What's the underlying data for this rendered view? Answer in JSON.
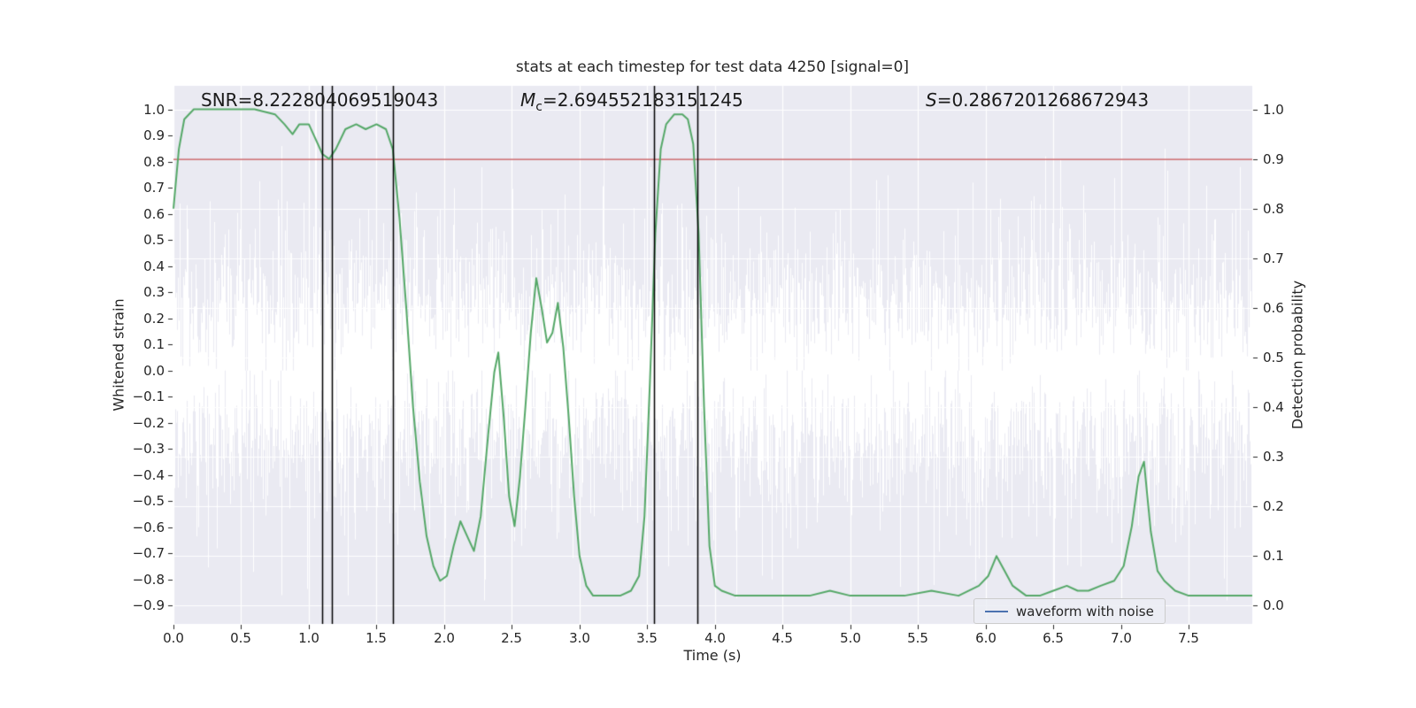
{
  "chart_data": {
    "type": "line",
    "title": "stats at each timestep for test data 4250 [signal=0]",
    "xlabel": "Time (s)",
    "ylabel_left": "Whitened strain",
    "ylabel_right": "Detection probability",
    "xlim": [
      0.0,
      7.97
    ],
    "ylim_left": [
      -0.97,
      1.09
    ],
    "right_axis": {
      "left_at_0": -0.9,
      "left_at_1": 1.0
    },
    "grid": true,
    "colors": {
      "axes_bg": "#eaeaf2",
      "grid": "#ffffff",
      "noise_blue": "#4c72b0",
      "detection_green": "#55a868",
      "threshold_red": "#c44e52",
      "vline_black": "#000000",
      "text": "#262626"
    },
    "xticks": {
      "values": [
        0.0,
        0.5,
        1.0,
        1.5,
        2.0,
        2.5,
        3.0,
        3.5,
        4.0,
        4.5,
        5.0,
        5.5,
        6.0,
        6.5,
        7.0,
        7.5
      ],
      "labels": [
        "0.0",
        "0.5",
        "1.0",
        "1.5",
        "2.0",
        "2.5",
        "3.0",
        "3.5",
        "4.0",
        "4.5",
        "5.0",
        "5.5",
        "6.0",
        "6.5",
        "7.0",
        "7.5"
      ]
    },
    "yticks_left": {
      "values": [
        1.0,
        0.9,
        0.8,
        0.7,
        0.6,
        0.5,
        0.4,
        0.3,
        0.2,
        0.1,
        0.0,
        -0.1,
        -0.2,
        -0.3,
        -0.4,
        -0.5,
        -0.6,
        -0.7,
        -0.8,
        -0.9
      ],
      "labels": [
        "1.0",
        "0.9",
        "0.8",
        "0.7",
        "0.6",
        "0.5",
        "0.4",
        "0.3",
        "0.2",
        "0.1",
        "0.0",
        "−0.1",
        "−0.2",
        "−0.3",
        "−0.4",
        "−0.5",
        "−0.6",
        "−0.7",
        "−0.8",
        "−0.9"
      ]
    },
    "yticks_right": {
      "values": [
        1.0,
        0.9,
        0.8,
        0.7,
        0.6,
        0.5,
        0.4,
        0.3,
        0.2,
        0.1,
        0.0
      ],
      "labels": [
        "1.0",
        "0.9",
        "0.8",
        "0.7",
        "0.6",
        "0.5",
        "0.4",
        "0.3",
        "0.2",
        "0.1",
        "0.0"
      ]
    },
    "annotations": {
      "snr": {
        "label": "SNR",
        "value": "=8.222804069519043"
      },
      "mc": {
        "label": "M",
        "sub": "c",
        "value": "=2.694552183151245"
      },
      "s": {
        "label": "S",
        "value": "=0.2867201268672943"
      }
    },
    "threshold_line": {
      "axis": "right",
      "p": 0.9
    },
    "vlines": {
      "xs": [
        1.1,
        1.17,
        1.62,
        3.55,
        3.87
      ]
    },
    "legend": {
      "items": [
        {
          "label": "waveform with noise",
          "color": "#4c72b0"
        }
      ]
    },
    "series": {
      "noise": {
        "name": "waveform with noise",
        "axis": "left",
        "seed": 7,
        "samples_per_column": 6,
        "std": 0.21,
        "outlier_frac": 0.18,
        "outlier_std": 0.3,
        "clip": [
          -0.88,
          1.0
        ],
        "spikes": [
          [
            0.8,
            -0.86
          ],
          [
            2.3,
            -0.8
          ],
          [
            3.18,
            1.0
          ],
          [
            4.42,
            -0.8
          ],
          [
            5.95,
            -0.72
          ],
          [
            6.44,
            0.82
          ],
          [
            6.7,
            -0.75
          ],
          [
            7.32,
            0.85
          ]
        ]
      },
      "detection": {
        "name": "detection probability",
        "axis": "right",
        "points": [
          [
            0.0,
            0.8
          ],
          [
            0.04,
            0.92
          ],
          [
            0.08,
            0.98
          ],
          [
            0.15,
            1.0
          ],
          [
            0.4,
            1.0
          ],
          [
            0.6,
            1.0
          ],
          [
            0.75,
            0.99
          ],
          [
            0.82,
            0.97
          ],
          [
            0.88,
            0.95
          ],
          [
            0.93,
            0.97
          ],
          [
            1.0,
            0.97
          ],
          [
            1.05,
            0.94
          ],
          [
            1.1,
            0.91
          ],
          [
            1.15,
            0.9
          ],
          [
            1.2,
            0.92
          ],
          [
            1.27,
            0.96
          ],
          [
            1.35,
            0.97
          ],
          [
            1.42,
            0.96
          ],
          [
            1.5,
            0.97
          ],
          [
            1.57,
            0.96
          ],
          [
            1.62,
            0.92
          ],
          [
            1.67,
            0.78
          ],
          [
            1.72,
            0.6
          ],
          [
            1.77,
            0.4
          ],
          [
            1.82,
            0.25
          ],
          [
            1.87,
            0.14
          ],
          [
            1.92,
            0.08
          ],
          [
            1.97,
            0.05
          ],
          [
            2.02,
            0.06
          ],
          [
            2.07,
            0.12
          ],
          [
            2.12,
            0.17
          ],
          [
            2.17,
            0.14
          ],
          [
            2.22,
            0.11
          ],
          [
            2.27,
            0.18
          ],
          [
            2.32,
            0.33
          ],
          [
            2.37,
            0.47
          ],
          [
            2.4,
            0.51
          ],
          [
            2.44,
            0.38
          ],
          [
            2.48,
            0.22
          ],
          [
            2.52,
            0.16
          ],
          [
            2.56,
            0.26
          ],
          [
            2.6,
            0.4
          ],
          [
            2.64,
            0.55
          ],
          [
            2.68,
            0.66
          ],
          [
            2.72,
            0.6
          ],
          [
            2.76,
            0.53
          ],
          [
            2.8,
            0.55
          ],
          [
            2.84,
            0.61
          ],
          [
            2.88,
            0.52
          ],
          [
            2.92,
            0.38
          ],
          [
            2.96,
            0.22
          ],
          [
            3.0,
            0.1
          ],
          [
            3.05,
            0.04
          ],
          [
            3.1,
            0.02
          ],
          [
            3.2,
            0.02
          ],
          [
            3.3,
            0.02
          ],
          [
            3.38,
            0.03
          ],
          [
            3.44,
            0.06
          ],
          [
            3.48,
            0.18
          ],
          [
            3.52,
            0.45
          ],
          [
            3.56,
            0.75
          ],
          [
            3.6,
            0.92
          ],
          [
            3.64,
            0.97
          ],
          [
            3.7,
            0.99
          ],
          [
            3.76,
            0.99
          ],
          [
            3.8,
            0.98
          ],
          [
            3.84,
            0.93
          ],
          [
            3.88,
            0.75
          ],
          [
            3.92,
            0.4
          ],
          [
            3.96,
            0.12
          ],
          [
            4.0,
            0.04
          ],
          [
            4.05,
            0.03
          ],
          [
            4.15,
            0.02
          ],
          [
            4.3,
            0.02
          ],
          [
            4.5,
            0.02
          ],
          [
            4.7,
            0.02
          ],
          [
            4.85,
            0.03
          ],
          [
            5.0,
            0.02
          ],
          [
            5.2,
            0.02
          ],
          [
            5.4,
            0.02
          ],
          [
            5.6,
            0.03
          ],
          [
            5.8,
            0.02
          ],
          [
            5.95,
            0.04
          ],
          [
            6.02,
            0.06
          ],
          [
            6.08,
            0.1
          ],
          [
            6.14,
            0.07
          ],
          [
            6.2,
            0.04
          ],
          [
            6.3,
            0.02
          ],
          [
            6.4,
            0.02
          ],
          [
            6.5,
            0.03
          ],
          [
            6.6,
            0.04
          ],
          [
            6.68,
            0.03
          ],
          [
            6.76,
            0.03
          ],
          [
            6.85,
            0.04
          ],
          [
            6.95,
            0.05
          ],
          [
            7.02,
            0.08
          ],
          [
            7.08,
            0.16
          ],
          [
            7.13,
            0.26
          ],
          [
            7.17,
            0.29
          ],
          [
            7.22,
            0.15
          ],
          [
            7.27,
            0.07
          ],
          [
            7.32,
            0.05
          ],
          [
            7.4,
            0.03
          ],
          [
            7.5,
            0.02
          ],
          [
            7.6,
            0.02
          ],
          [
            7.75,
            0.02
          ],
          [
            7.9,
            0.02
          ],
          [
            7.97,
            0.02
          ]
        ]
      }
    }
  }
}
